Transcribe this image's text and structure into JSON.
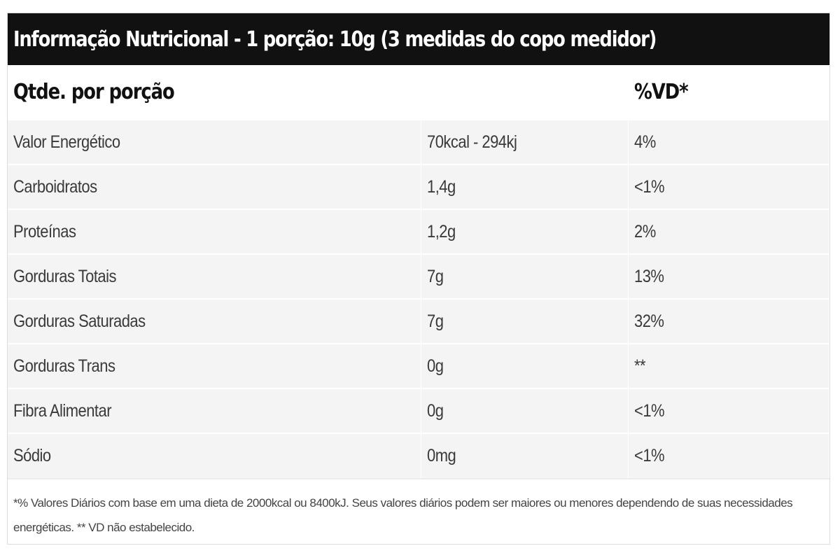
{
  "table": {
    "title": "Informação Nutricional - 1 porção: 10g (3 medidas do copo medidor)",
    "header": {
      "label": "Qtde. por porção",
      "amount": "",
      "dv": "%VD*"
    },
    "rows": [
      {
        "nutrient": "Valor Energético",
        "amount": "70kcal - 294kj",
        "dv": "4%"
      },
      {
        "nutrient": "Carboidratos",
        "amount": "1,4g",
        "dv": "<1%"
      },
      {
        "nutrient": "Proteínas",
        "amount": "1,2g",
        "dv": "2%"
      },
      {
        "nutrient": "Gorduras Totais",
        "amount": "7g",
        "dv": "13%"
      },
      {
        "nutrient": "Gorduras Saturadas",
        "amount": "7g",
        "dv": "32%"
      },
      {
        "nutrient": "Gorduras Trans",
        "amount": "0g",
        "dv": "**"
      },
      {
        "nutrient": "Fibra Alimentar",
        "amount": "0g",
        "dv": "<1%"
      },
      {
        "nutrient": "Sódio",
        "amount": "0mg",
        "dv": "<1%"
      }
    ],
    "footnote_line1": "*% Valores Diários com base em uma dieta de 2000kcal ou 8400kJ. Seus valores diários podem ser maiores ou menores dependendo de suas necessidades",
    "footnote_line2": "energéticas. ** VD não estabelecido."
  },
  "colors": {
    "title_background": "#111111",
    "row_background": "#f4f4f4",
    "text": "#333333"
  }
}
